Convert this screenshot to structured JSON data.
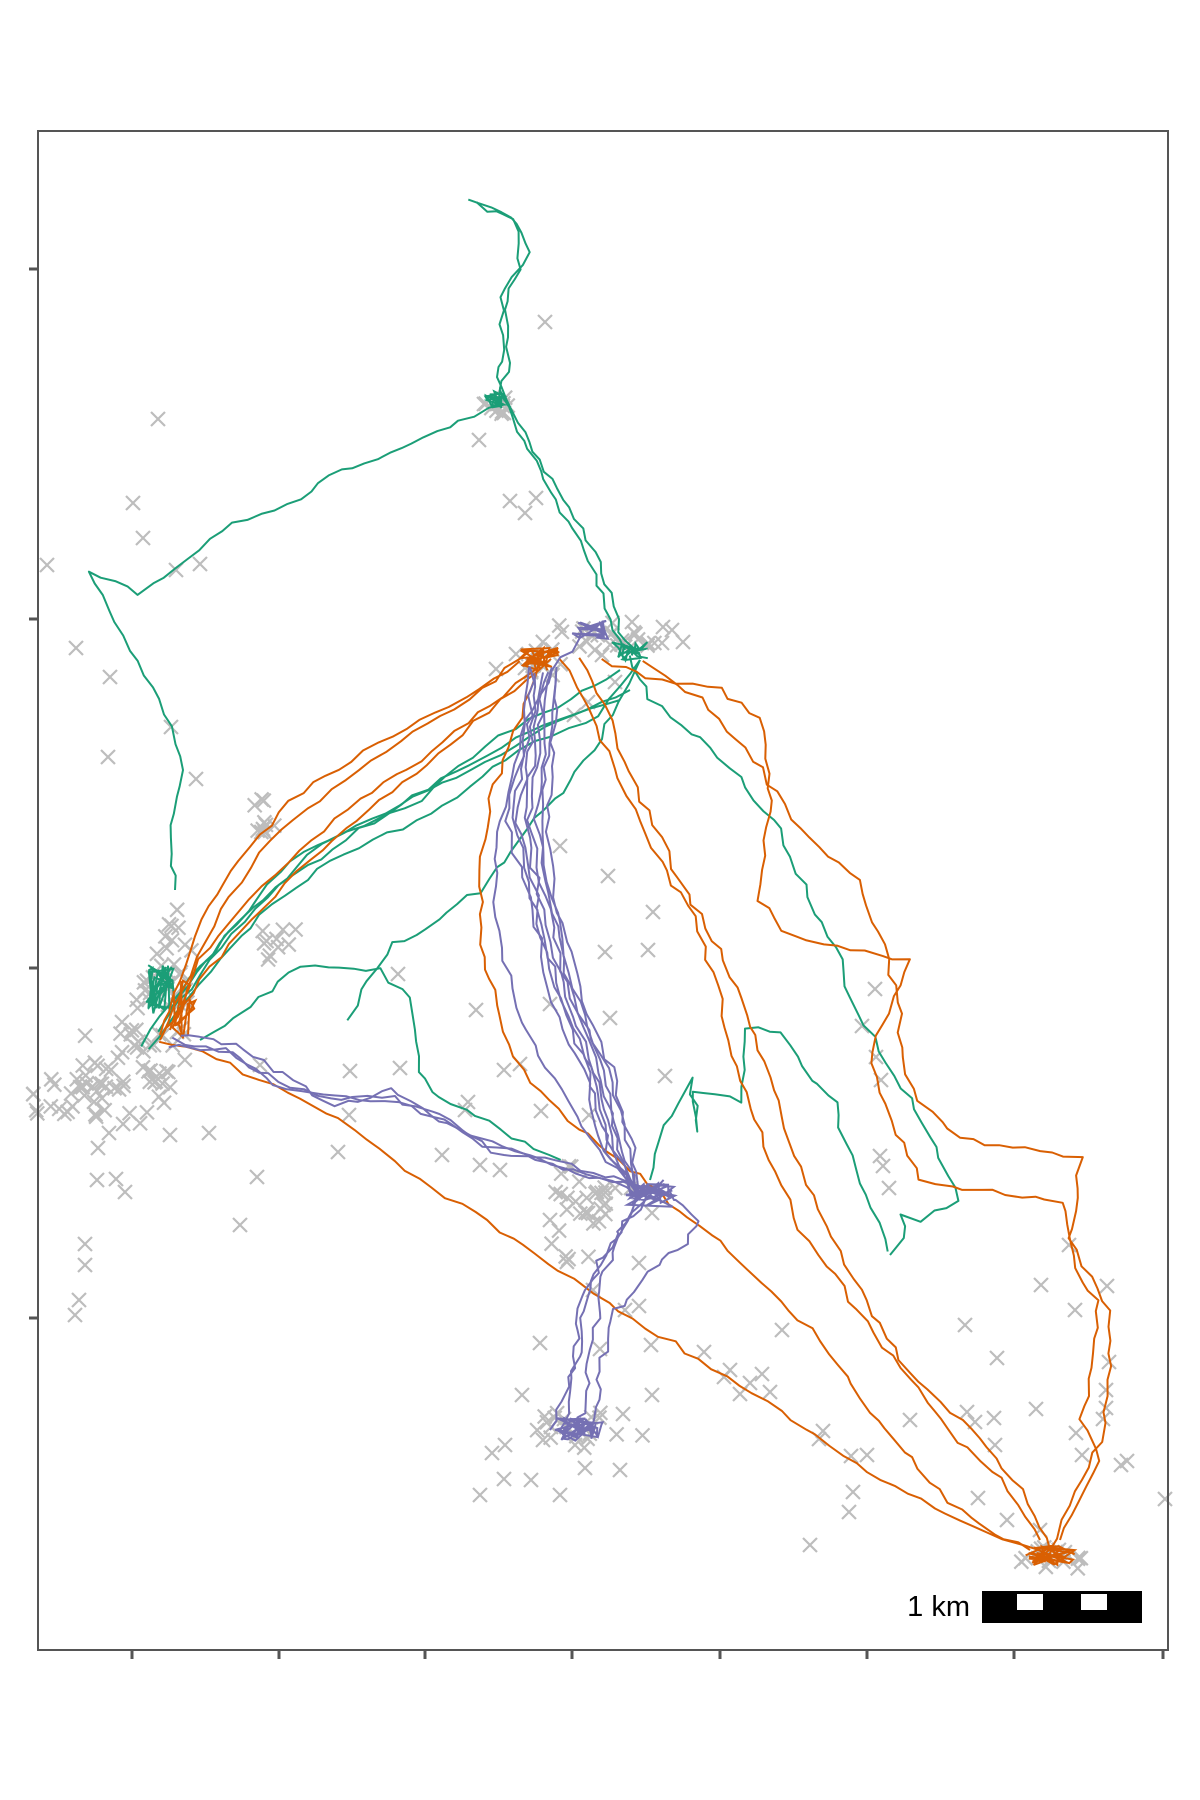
{
  "map": {
    "scale_bar_label": "1 km",
    "colors": {
      "frame": "#555555",
      "background_points": "#bdbdbd",
      "track_green": "#1b9e77",
      "track_orange": "#d95f02",
      "track_purple": "#7570b3"
    },
    "x_tick_count": 8,
    "y_tick_count": 4,
    "tick_labels_shown": false,
    "background_point_marker": "cross",
    "track_groups": [
      "green",
      "orange",
      "purple"
    ]
  }
}
